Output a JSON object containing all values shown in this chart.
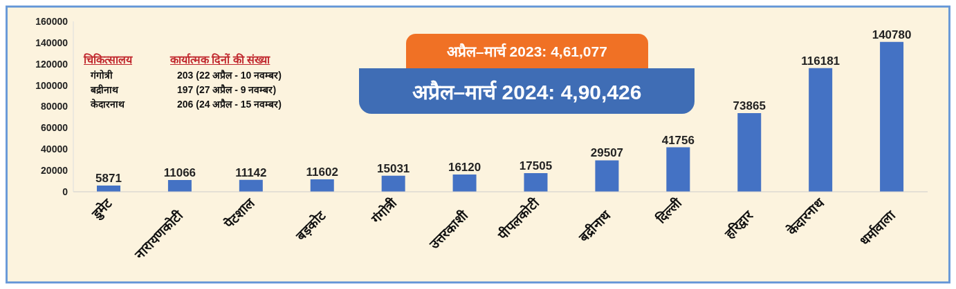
{
  "chart_data": {
    "type": "bar",
    "categories": [
      "डुमेट",
      "नारायणकोटी",
      "पेटशाल",
      "बड़कोट",
      "गंगोत्री",
      "उत्तरकाशी",
      "पीपलकोटी",
      "बद्रीनाथ",
      "दिल्ली",
      "हरिद्वार",
      "केदारनाथ",
      "धर्मावाला"
    ],
    "values": [
      5871,
      11066,
      11142,
      11602,
      15031,
      16120,
      17505,
      29507,
      41756,
      73865,
      116181,
      140780
    ],
    "color": "#4472c4",
    "ylim": [
      0,
      160000
    ],
    "yticks": [
      0,
      20000,
      40000,
      60000,
      80000,
      100000,
      120000,
      140000,
      160000
    ],
    "grid": false,
    "legend": false,
    "data_labels": true,
    "annotations": [
      "चिकित्सालय",
      "कार्यात्मक दिनों की संख्या",
      "गंगोत्री",
      "203 (22 अप्रैल - 10 नवम्बर)",
      "बद्रीनाथ",
      "197 (27 अप्रैल - 9 नवम्बर)",
      "केदारनाथ",
      "206 (24 अप्रैल - 15 नवम्बर)",
      "अप्रैल–मार्च 2023: 4,61,077",
      "अप्रैल–मार्च 2024: 4,90,426"
    ]
  }
}
